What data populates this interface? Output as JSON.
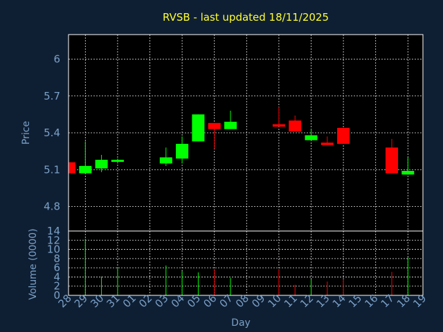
{
  "chart_data": {
    "type": "candlestick",
    "title": "RVSB - last updated 18/11/2025",
    "xlabel": "Day",
    "price_axis": {
      "label": "Price",
      "ylim": [
        4.6,
        6.2
      ],
      "ticks": [
        "4.8",
        "5.1",
        "5.4",
        "5.7",
        "6"
      ]
    },
    "volume_axis": {
      "label": "Volume (0000)",
      "ylim": [
        0,
        14
      ],
      "ticks": [
        "0",
        "2",
        "4",
        "6",
        "8",
        "10",
        "12",
        "14"
      ]
    },
    "days": [
      "28",
      "29",
      "30",
      "31",
      "01",
      "02",
      "03",
      "04",
      "05",
      "06",
      "07",
      "08",
      "09",
      "10",
      "11",
      "12",
      "13",
      "14",
      "15",
      "16",
      "17",
      "18",
      "19"
    ],
    "candles": [
      {
        "day": "28",
        "open": 5.16,
        "high": 5.16,
        "low": 5.07,
        "close": 5.07
      },
      {
        "day": "29",
        "open": 5.07,
        "high": 5.33,
        "low": 5.07,
        "close": 5.13
      },
      {
        "day": "30",
        "open": 5.11,
        "high": 5.22,
        "low": 5.08,
        "close": 5.18
      },
      {
        "day": "31",
        "open": 5.17,
        "high": 5.19,
        "low": 5.15,
        "close": 5.18
      },
      {
        "day": "03",
        "open": 5.15,
        "high": 5.28,
        "low": 5.13,
        "close": 5.2
      },
      {
        "day": "04",
        "open": 5.19,
        "high": 5.37,
        "low": 5.15,
        "close": 5.31
      },
      {
        "day": "05",
        "open": 5.33,
        "high": 5.55,
        "low": 5.33,
        "close": 5.55
      },
      {
        "day": "06",
        "open": 5.48,
        "high": 5.48,
        "low": 5.27,
        "close": 5.43
      },
      {
        "day": "07",
        "open": 5.43,
        "high": 5.58,
        "low": 5.43,
        "close": 5.49
      },
      {
        "day": "10",
        "open": 5.47,
        "high": 5.61,
        "low": 5.45,
        "close": 5.45
      },
      {
        "day": "11",
        "open": 5.5,
        "high": 5.54,
        "low": 5.41,
        "close": 5.41
      },
      {
        "day": "12",
        "open": 5.34,
        "high": 5.43,
        "low": 5.34,
        "close": 5.38
      },
      {
        "day": "13",
        "open": 5.32,
        "high": 5.37,
        "low": 5.3,
        "close": 5.3
      },
      {
        "day": "14",
        "open": 5.44,
        "high": 5.44,
        "low": 5.31,
        "close": 5.31
      },
      {
        "day": "17",
        "open": 5.28,
        "high": 5.35,
        "low": 5.07,
        "close": 5.07
      },
      {
        "day": "18",
        "open": 5.06,
        "high": 5.2,
        "low": 5.06,
        "close": 5.09
      }
    ],
    "volumes": [
      {
        "day": "29",
        "value": 12.3,
        "direction": "up"
      },
      {
        "day": "30",
        "value": 4.1,
        "direction": "up"
      },
      {
        "day": "31",
        "value": 5.9,
        "direction": "up"
      },
      {
        "day": "03",
        "value": 6.5,
        "direction": "up"
      },
      {
        "day": "04",
        "value": 5.3,
        "direction": "up"
      },
      {
        "day": "05",
        "value": 5.0,
        "direction": "up"
      },
      {
        "day": "06",
        "value": 5.7,
        "direction": "down"
      },
      {
        "day": "07",
        "value": 3.8,
        "direction": "up"
      },
      {
        "day": "10",
        "value": 5.7,
        "direction": "down"
      },
      {
        "day": "11",
        "value": 2.3,
        "direction": "down"
      },
      {
        "day": "12",
        "value": 3.5,
        "direction": "up"
      },
      {
        "day": "13",
        "value": 3.0,
        "direction": "down"
      },
      {
        "day": "14",
        "value": 3.5,
        "direction": "down"
      },
      {
        "day": "17",
        "value": 5.1,
        "direction": "down"
      },
      {
        "day": "18",
        "value": 8.3,
        "direction": "up"
      }
    ],
    "colors": {
      "background": "#0f1f33",
      "plot": "#000000",
      "up": "#00ff00",
      "down": "#ff0000",
      "grid": "#e8e8e8",
      "title": "#ffff33",
      "axis_text": "#7aa0c8"
    },
    "grid": true
  }
}
